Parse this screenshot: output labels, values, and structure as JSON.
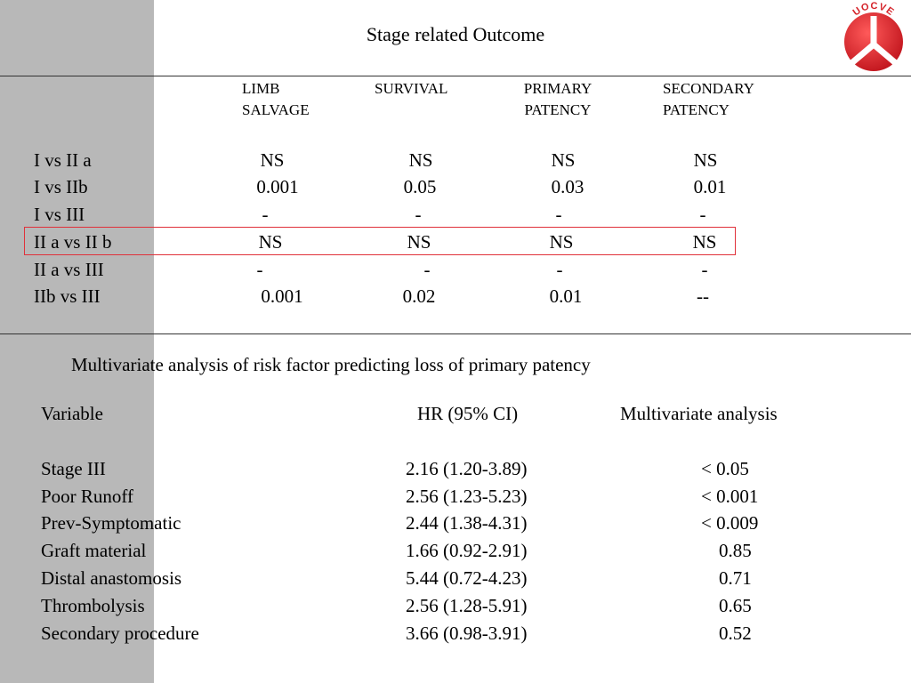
{
  "title": "Stage related Outcome",
  "logo_text": "UOCVE",
  "colors": {
    "band": "#b8b8b8",
    "highlight": "#e0303a",
    "logo": "#d5232a"
  },
  "stage_table": {
    "headers": [
      [
        "LIMB",
        "SALVAGE"
      ],
      [
        "SURVIVAL",
        ""
      ],
      [
        "PRIMARY",
        "PATENCY"
      ],
      [
        "SECONDARY",
        "PATENCY"
      ]
    ],
    "rows": [
      {
        "label": "I vs II a",
        "values": [
          "NS",
          "NS",
          "NS",
          "NS"
        ]
      },
      {
        "label": "I vs IIb",
        "values": [
          "0.001",
          "0.05",
          "0.03",
          "0.01"
        ]
      },
      {
        "label": "I  vs III",
        "values": [
          "-",
          "-",
          "-",
          "-"
        ]
      },
      {
        "label": "II a vs II b",
        "values": [
          "NS",
          "NS",
          "NS",
          "NS"
        ]
      },
      {
        "label": "II a vs III",
        "values": [
          "-",
          "-",
          "-",
          "-"
        ]
      },
      {
        "label": "IIb   vs III",
        "values": [
          "0.001",
          "0.02",
          "0.01",
          "--"
        ]
      }
    ]
  },
  "multivariate": {
    "caption": "Multivariate analysis of risk factor predicting loss of primary patency",
    "headers": [
      "Variable",
      "HR (95% CI)",
      "Multivariate analysis"
    ],
    "rows": [
      {
        "variable": "Stage III",
        "hr": "2.16 (1.20-3.89)",
        "p": "< 0.05"
      },
      {
        "variable": "Poor Runoff",
        "hr": "2.56 (1.23-5.23)",
        "p": "< 0.001"
      },
      {
        "variable": "Prev-Symptomatic",
        "hr": "2.44 (1.38-4.31)",
        "p": "< 0.009"
      },
      {
        "variable": "Graft material",
        "hr": "1.66 (0.92-2.91)",
        "p": "0.85"
      },
      {
        "variable": "Distal anastomosis",
        "hr": "5.44 (0.72-4.23)",
        "p": "0.71"
      },
      {
        "variable": "Thrombolysis",
        "hr": "2.56 (1.28-5.91)",
        "p": "0.65"
      },
      {
        "variable": "Secondary procedure",
        "hr": "3.66 (0.98-3.91)",
        "p": "0.52"
      }
    ]
  }
}
